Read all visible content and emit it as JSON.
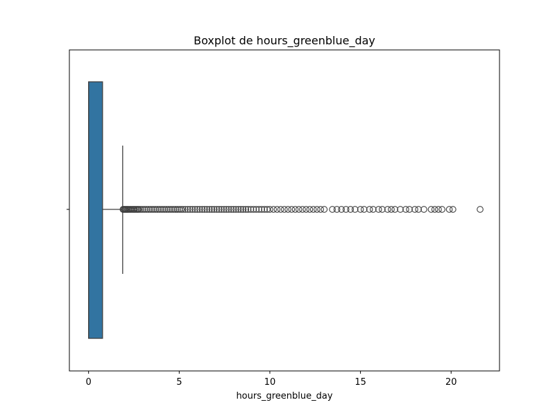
{
  "chart_data": {
    "type": "boxplot",
    "title": "Boxplot de hours_greenblue_day",
    "xlabel": "hours_greenblue_day",
    "ylabel": "",
    "orientation": "horizontal",
    "xlim": [
      -1.06,
      22.67
    ],
    "xticks": [
      0,
      5,
      10,
      15,
      20
    ],
    "grid": false,
    "legend": false,
    "box": {
      "min": 0,
      "q1": 0,
      "median": 0,
      "q3": 0.77,
      "whisker_low": 0,
      "whisker_high": 1.88,
      "color": "#3274a1",
      "edge_color": "#3f3f3f"
    },
    "outliers": [
      1.9,
      1.95,
      2.0,
      2.05,
      2.1,
      2.15,
      2.2,
      2.27,
      2.33,
      2.4,
      2.47,
      2.53,
      2.6,
      2.67,
      2.73,
      2.8,
      2.9,
      3.0,
      3.1,
      3.2,
      3.3,
      3.4,
      3.5,
      3.6,
      3.7,
      3.8,
      3.9,
      4.0,
      4.1,
      4.2,
      4.3,
      4.4,
      4.5,
      4.6,
      4.7,
      4.8,
      4.9,
      5.0,
      5.1,
      5.2,
      5.33,
      5.47,
      5.6,
      5.73,
      5.87,
      6.0,
      6.13,
      6.27,
      6.4,
      6.53,
      6.67,
      6.8,
      6.93,
      7.07,
      7.2,
      7.33,
      7.47,
      7.6,
      7.73,
      7.87,
      8.0,
      8.13,
      8.27,
      8.4,
      8.53,
      8.67,
      8.8,
      8.95,
      9.1,
      9.25,
      9.4,
      9.55,
      9.7,
      9.85,
      10.0,
      10.2,
      10.4,
      10.6,
      10.8,
      11.0,
      11.2,
      11.4,
      11.6,
      11.8,
      12.0,
      12.2,
      12.4,
      12.6,
      12.8,
      13.0,
      13.45,
      13.7,
      13.95,
      14.2,
      14.45,
      14.7,
      15.0,
      15.2,
      15.5,
      15.7,
      16.0,
      16.2,
      16.5,
      16.7,
      16.9,
      17.2,
      17.5,
      17.7,
      18.0,
      18.2,
      18.5,
      18.9,
      19.1,
      19.3,
      19.5,
      19.9,
      20.1,
      21.6
    ]
  }
}
